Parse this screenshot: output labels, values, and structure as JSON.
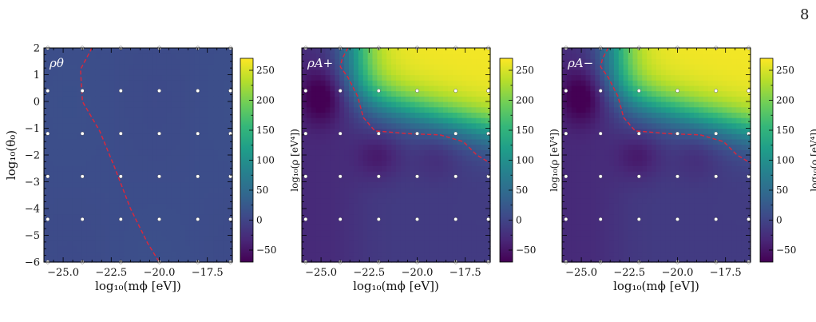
{
  "page_number": "8",
  "colorbar_title": "log₁₀(ρ [eV⁴])",
  "colormap": [
    "#440154",
    "#482878",
    "#3e4989",
    "#31688e",
    "#26828e",
    "#1f9e89",
    "#35b779",
    "#6ece58",
    "#b5de2b",
    "#fde725"
  ],
  "grid_point_color": "#ffffff",
  "contour_color": "#d6283e",
  "chart_data": [
    {
      "type": "heatmap",
      "panel_label": "ρθ",
      "xlabel": "log₁₀(mϕ [eV])",
      "ylabel": "log₁₀(θ₀)",
      "xlim": [
        -26.0,
        -16.2
      ],
      "ylim": [
        -6.0,
        2.0
      ],
      "x_ticks": [
        -25.0,
        -22.5,
        -20.0,
        -17.5
      ],
      "x_tick_labels": [
        "−25.0",
        "−22.5",
        "−20.0",
        "−17.5"
      ],
      "y_ticks": [
        -6,
        -5,
        -4,
        -3,
        -2,
        -1,
        0,
        1,
        2
      ],
      "y_tick_labels": [
        "−6",
        "−5",
        "−4",
        "−3",
        "−2",
        "−1",
        "0",
        "1",
        "2"
      ],
      "colorbar_range": [
        -70,
        270
      ],
      "colorbar_ticks": [
        -50,
        0,
        50,
        100,
        150,
        200,
        250
      ],
      "colorbar_tick_labels": [
        "−50",
        "0",
        "50",
        "100",
        "150",
        "200",
        "250"
      ],
      "grid_points_x": [
        -25.8,
        -24.0,
        -22.0,
        -20.0,
        -18.0,
        -16.3
      ],
      "grid_points_y": [
        2.0,
        0.4,
        -1.2,
        -2.8,
        -4.4,
        -6.0
      ],
      "contour": [
        [
          -23.5,
          2.0
        ],
        [
          -24.1,
          1.2
        ],
        [
          -24.0,
          0.0
        ],
        [
          -23.1,
          -1.1
        ],
        [
          -22.3,
          -2.5
        ],
        [
          -21.5,
          -4.0
        ],
        [
          -20.6,
          -5.3
        ],
        [
          -20.0,
          -6.0
        ]
      ],
      "contour_label": "",
      "field": "flat"
    },
    {
      "type": "heatmap",
      "panel_label": "ρA+",
      "xlabel": "log₁₀(mϕ [eV])",
      "ylabel": "",
      "xlim": [
        -26.0,
        -16.2
      ],
      "ylim": [
        -6.0,
        2.0
      ],
      "x_ticks": [
        -25.0,
        -22.5,
        -20.0,
        -17.5
      ],
      "x_tick_labels": [
        "−25.0",
        "−22.5",
        "−20.0",
        "−17.5"
      ],
      "y_ticks": [
        -6,
        -5,
        -4,
        -3,
        -2,
        -1,
        0,
        1,
        2
      ],
      "y_tick_labels": [],
      "colorbar_range": [
        -70,
        270
      ],
      "colorbar_ticks": [
        -50,
        0,
        50,
        100,
        150,
        200,
        250
      ],
      "colorbar_tick_labels": [
        "−50",
        "0",
        "50",
        "100",
        "150",
        "200",
        "250"
      ],
      "grid_points_x": [
        -25.8,
        -24.0,
        -22.0,
        -20.0,
        -18.0,
        -16.3
      ],
      "grid_points_y": [
        2.0,
        0.4,
        -1.2,
        -2.8,
        -4.4,
        -6.0
      ],
      "contour": [
        [
          -23.6,
          2.0
        ],
        [
          -23.9,
          1.6
        ],
        [
          -24.0,
          1.3
        ],
        [
          -23.6,
          0.9
        ],
        [
          -23.1,
          0.2
        ],
        [
          -22.8,
          -0.6
        ],
        [
          -22.2,
          -1.1
        ],
        [
          -20.5,
          -1.2
        ],
        [
          -18.8,
          -1.25
        ],
        [
          -17.6,
          -1.5
        ],
        [
          -16.9,
          -2.0
        ],
        [
          -16.2,
          -2.3
        ]
      ],
      "contour_label": "",
      "field": "hot"
    },
    {
      "type": "heatmap",
      "panel_label": "ρA−",
      "xlabel": "log₁₀(mϕ [eV])",
      "ylabel": "",
      "xlim": [
        -26.0,
        -16.2
      ],
      "ylim": [
        -6.0,
        2.0
      ],
      "x_ticks": [
        -25.0,
        -22.5,
        -20.0,
        -17.5
      ],
      "x_tick_labels": [
        "−25.0",
        "−22.5",
        "−20.0",
        "−17.5"
      ],
      "y_ticks": [
        -6,
        -5,
        -4,
        -3,
        -2,
        -1,
        0,
        1,
        2
      ],
      "y_tick_labels": [],
      "colorbar_range": [
        -70,
        270
      ],
      "colorbar_ticks": [
        -50,
        0,
        50,
        100,
        150,
        200,
        250
      ],
      "colorbar_tick_labels": [
        "−50",
        "0",
        "50",
        "100",
        "150",
        "200",
        "250"
      ],
      "grid_points_x": [
        -25.8,
        -24.0,
        -22.0,
        -20.0,
        -18.0,
        -16.3
      ],
      "grid_points_y": [
        2.0,
        0.4,
        -1.2,
        -2.8,
        -4.4,
        -6.0
      ],
      "contour": [
        [
          -23.6,
          2.0
        ],
        [
          -23.9,
          1.6
        ],
        [
          -24.0,
          1.3
        ],
        [
          -23.6,
          0.9
        ],
        [
          -23.1,
          0.2
        ],
        [
          -22.8,
          -0.6
        ],
        [
          -22.2,
          -1.1
        ],
        [
          -20.5,
          -1.2
        ],
        [
          -18.8,
          -1.25
        ],
        [
          -17.6,
          -1.5
        ],
        [
          -16.9,
          -2.0
        ],
        [
          -16.2,
          -2.3
        ]
      ],
      "contour_label": "",
      "field": "hot"
    }
  ]
}
